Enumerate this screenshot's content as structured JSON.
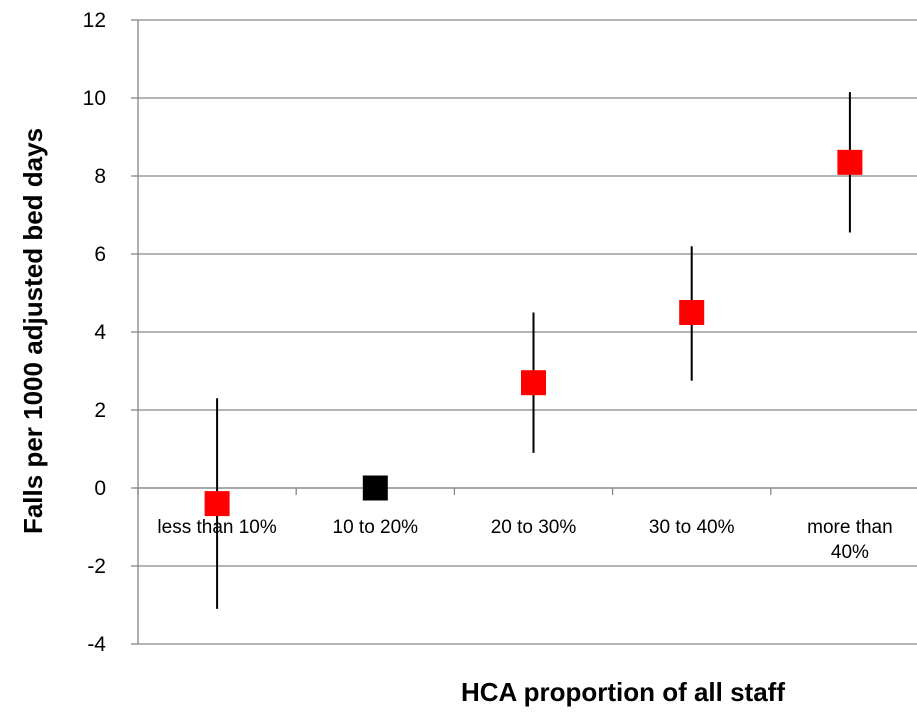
{
  "chart_data": {
    "type": "scatter",
    "xlabel": "HCA proportion of all staff",
    "ylabel": "Falls per 1000 adjusted bed days",
    "categories": [
      [
        "less than 10%"
      ],
      [
        "10 to 20%"
      ],
      [
        "20 to 30%"
      ],
      [
        "30 to 40%"
      ],
      [
        "more than",
        "40%"
      ]
    ],
    "points": [
      {
        "value": -0.4,
        "lower": -3.1,
        "upper": 2.3,
        "color": "#ff0000"
      },
      {
        "value": 0,
        "lower": 0,
        "upper": 0,
        "color": "#000000"
      },
      {
        "value": 2.7,
        "lower": 0.9,
        "upper": 4.5,
        "color": "#ff0000"
      },
      {
        "value": 4.5,
        "lower": 2.75,
        "upper": 6.2,
        "color": "#ff0000"
      },
      {
        "value": 8.35,
        "lower": 6.55,
        "upper": 10.15,
        "color": "#ff0000"
      }
    ],
    "ylim": [
      -4,
      12
    ],
    "yticks": [
      -4,
      -2,
      0,
      2,
      4,
      6,
      8,
      10,
      12
    ],
    "grid": true,
    "legend": "none",
    "colors": {
      "reference": "#000000",
      "comparison": "#ff0000",
      "gridline": "#868686",
      "errorbar": "#000000"
    }
  }
}
